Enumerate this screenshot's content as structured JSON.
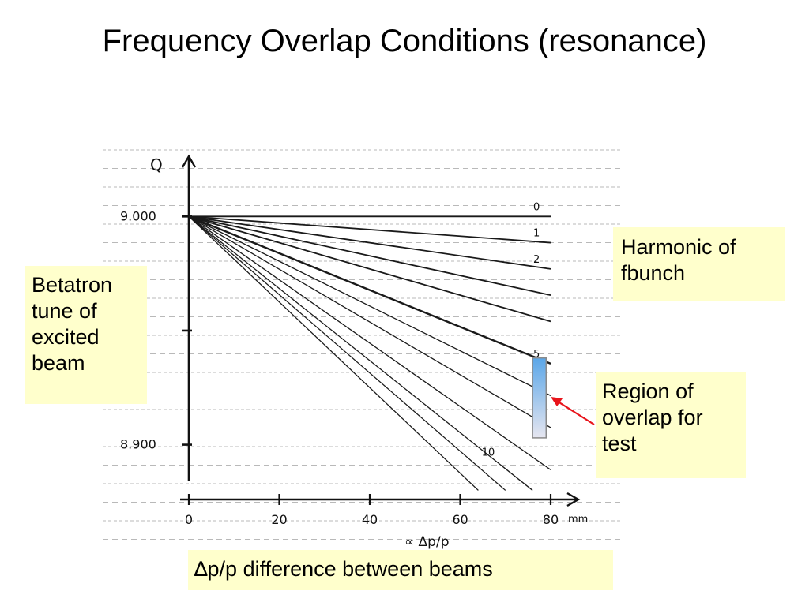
{
  "slide": {
    "title": "Frequency Overlap Conditions (resonance)"
  },
  "callouts": {
    "betatron": "Betatron tune of excited beam",
    "harmonic": "Harmonic of fbunch",
    "region": "Region of overlap for test",
    "dp_prefix": "∆",
    "dp_rest": "p/p difference between beams"
  },
  "colors": {
    "callout_bg": "#ffffcc",
    "arrow": "#e8141b",
    "region_fill_top": "#5aa6e8",
    "region_fill_bottom": "#e6e6f0"
  },
  "chart_data": {
    "type": "line",
    "title": "",
    "xlabel": "∝ Δp/p",
    "ylabel": "Q",
    "x_unit": "mm",
    "xlim": [
      0,
      80
    ],
    "ylim": [
      8.876,
      9.025
    ],
    "x_ticks": [
      {
        "value": 0,
        "label": "0"
      },
      {
        "value": 20,
        "label": "20"
      },
      {
        "value": 40,
        "label": "40"
      },
      {
        "value": 60,
        "label": "60"
      },
      {
        "value": 80,
        "label": "80"
      }
    ],
    "y_ticks": [
      {
        "value": 9.0,
        "label": "9.000"
      },
      {
        "value": 8.95,
        "label": ""
      },
      {
        "value": 8.9,
        "label": "8.900"
      }
    ],
    "origin": {
      "x": 0,
      "y": 9.0
    },
    "series": [
      {
        "name": "0",
        "values": [
          [
            0,
            9.0
          ],
          [
            80,
            9.0
          ]
        ]
      },
      {
        "name": "1",
        "values": [
          [
            0,
            9.0
          ],
          [
            80,
            8.9885
          ]
        ]
      },
      {
        "name": "2",
        "values": [
          [
            0,
            9.0
          ],
          [
            80,
            8.977
          ]
        ]
      },
      {
        "name": "",
        "values": [
          [
            0,
            9.0
          ],
          [
            80,
            8.9655
          ]
        ]
      },
      {
        "name": "",
        "values": [
          [
            0,
            9.0
          ],
          [
            80,
            8.954
          ]
        ]
      },
      {
        "name": "5",
        "values": [
          [
            0,
            9.0
          ],
          [
            80,
            8.9355
          ]
        ]
      },
      {
        "name": "",
        "values": [
          [
            0,
            9.0
          ],
          [
            80,
            8.9215
          ]
        ]
      },
      {
        "name": "",
        "values": [
          [
            0,
            9.0
          ],
          [
            80,
            8.9075
          ]
        ]
      },
      {
        "name": "",
        "values": [
          [
            0,
            9.0
          ],
          [
            80,
            8.889
          ]
        ]
      },
      {
        "name": "",
        "values": [
          [
            0,
            9.0
          ],
          [
            76,
            8.88
          ]
        ]
      },
      {
        "name": "10",
        "values": [
          [
            0,
            9.0
          ],
          [
            70,
            8.88
          ]
        ]
      },
      {
        "name": "",
        "values": [
          [
            0,
            9.0
          ],
          [
            64,
            8.88
          ]
        ]
      }
    ],
    "annotations": [
      {
        "text": "Region of overlap for test",
        "x_range": [
          76,
          79
        ],
        "y_range": [
          8.903,
          8.938
        ]
      }
    ],
    "grid": true
  }
}
